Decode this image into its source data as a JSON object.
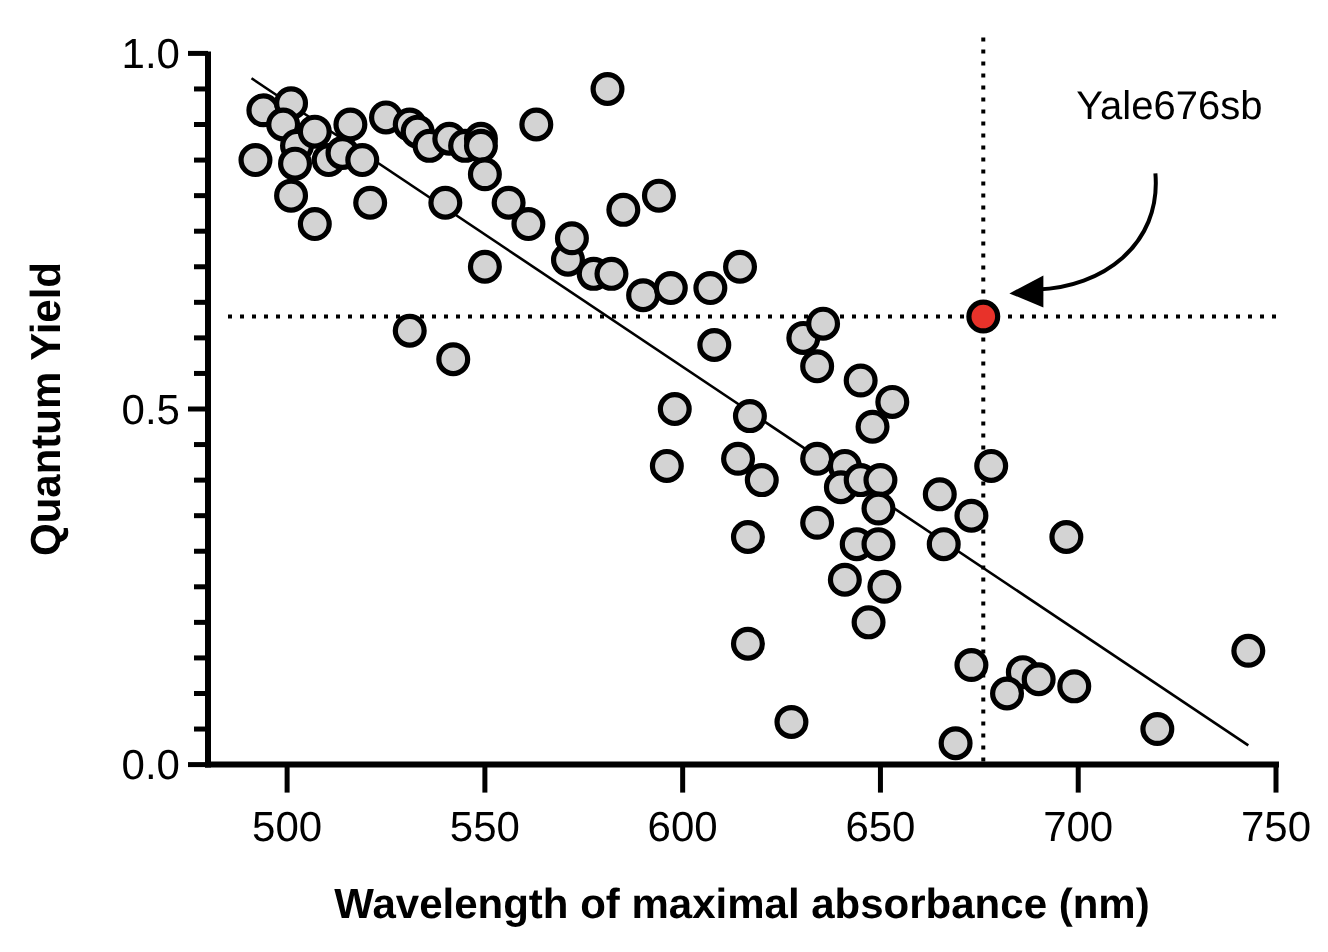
{
  "chart_data": {
    "type": "scatter",
    "xlabel": "Wavelength of maximal absorbance (nm)",
    "ylabel": "Quantum Yield",
    "xlim": [
      480,
      750
    ],
    "xticks": [
      500,
      550,
      600,
      650,
      700,
      750
    ],
    "ylim": [
      0,
      1
    ],
    "yticks": [
      {
        "value": 0,
        "label": "0.0"
      },
      {
        "value": 0.05,
        "label": null
      },
      {
        "value": 0.1,
        "label": null
      },
      {
        "value": 0.15,
        "label": null
      },
      {
        "value": 0.2,
        "label": null
      },
      {
        "value": 0.25,
        "label": null
      },
      {
        "value": 0.3,
        "label": null
      },
      {
        "value": 0.35,
        "label": null
      },
      {
        "value": 0.4,
        "label": null
      },
      {
        "value": 0.45,
        "label": null
      },
      {
        "value": 0.5,
        "label": "0.5"
      },
      {
        "value": 0.55,
        "label": null
      },
      {
        "value": 0.6,
        "label": null
      },
      {
        "value": 0.65,
        "label": null
      },
      {
        "value": 0.7,
        "label": null
      },
      {
        "value": 0.75,
        "label": null
      },
      {
        "value": 0.8,
        "label": null
      },
      {
        "value": 0.85,
        "label": null
      },
      {
        "value": 0.9,
        "label": null
      },
      {
        "value": 0.95,
        "label": null
      },
      {
        "value": 1,
        "label": "1.0"
      }
    ],
    "grid": false,
    "marker": "circle",
    "series": [
      {
        "type": "line",
        "color": "#000000",
        "marker": "none",
        "x": [
          491,
          743
        ],
        "values": [
          0.965,
          0.027
        ]
      },
      {
        "color": "#d3d3d3",
        "x": [
          494,
          501,
          492,
          499,
          502.5,
          507,
          502,
          510.5,
          516,
          514,
          519,
          501,
          507,
          521,
          525,
          531,
          533,
          536,
          541,
          545,
          549,
          549,
          550,
          540,
          556,
          561,
          563,
          550,
          571,
          572,
          531,
          542,
          581,
          577.5,
          582,
          585,
          594,
          590,
          597,
          607,
          614.5,
          608,
          598,
          617,
          630.5,
          635.5,
          634,
          645,
          653,
          648,
          596,
          614,
          620,
          616.5,
          616.5,
          627.5,
          634,
          641,
          640,
          645,
          650,
          649.5,
          634,
          644,
          649.5,
          641,
          651,
          647,
          665,
          666,
          678,
          673,
          697,
          673,
          686,
          690,
          682,
          699,
          743,
          720,
          669
        ],
        "values": [
          0.92,
          0.93,
          0.85,
          0.9,
          0.87,
          0.89,
          0.845,
          0.85,
          0.9,
          0.86,
          0.85,
          0.8,
          0.76,
          0.79,
          0.91,
          0.9,
          0.89,
          0.87,
          0.88,
          0.87,
          0.88,
          0.87,
          0.83,
          0.79,
          0.79,
          0.76,
          0.9,
          0.7,
          0.71,
          0.74,
          0.61,
          0.57,
          0.95,
          0.69,
          0.69,
          0.78,
          0.8,
          0.66,
          0.67,
          0.67,
          0.7,
          0.59,
          0.5,
          0.49,
          0.6,
          0.62,
          0.56,
          0.54,
          0.51,
          0.475,
          0.42,
          0.43,
          0.4,
          0.32,
          0.17,
          0.06,
          0.43,
          0.42,
          0.39,
          0.4,
          0.4,
          0.36,
          0.34,
          0.31,
          0.31,
          0.26,
          0.25,
          0.2,
          0.38,
          0.31,
          0.42,
          0.35,
          0.32,
          0.14,
          0.13,
          0.12,
          0.1,
          0.11,
          0.16,
          0.05,
          0.03
        ]
      },
      {
        "color": "#e8322a",
        "x": [
          676
        ],
        "values": [
          0.63
        ]
      }
    ],
    "ref_lines": [
      {
        "axis": "x",
        "value": 676,
        "line_style": "dotted",
        "color": "#000000"
      },
      {
        "axis": "y",
        "value": 0.63,
        "line_style": "dotted",
        "color": "#000000"
      }
    ],
    "annotations": [
      "Yale676sb"
    ]
  }
}
